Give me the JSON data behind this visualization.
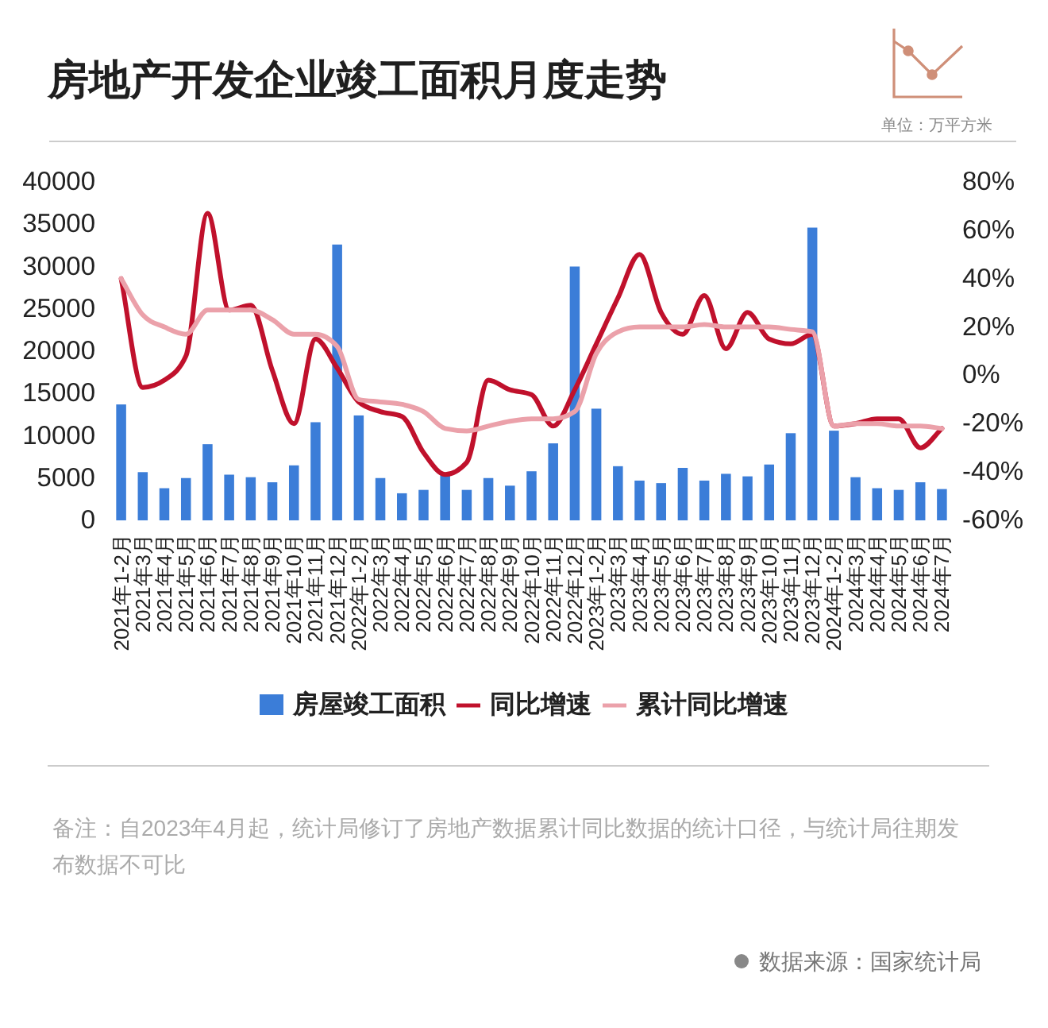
{
  "chart_data": {
    "type": "bar",
    "title": "房地产开发企业竣工面积月度走势",
    "subtitle": "单位：万平方米",
    "categories": [
      "2021年1-2月",
      "2021年3月",
      "2021年4月",
      "2021年5月",
      "2021年6月",
      "2021年7月",
      "2021年8月",
      "2021年9月",
      "2021年10月",
      "2021年11月",
      "2021年12月",
      "2022年1-2月",
      "2022年3月",
      "2022年4月",
      "2022年5月",
      "2022年6月",
      "2022年7月",
      "2022年8月",
      "2022年9月",
      "2022年10月",
      "2022年11月",
      "2022年12月",
      "2023年1-2月",
      "2023年3月",
      "2023年4月",
      "2023年5月",
      "2023年6月",
      "2023年7月",
      "2023年8月",
      "2023年9月",
      "2023年10月",
      "2023年11月",
      "2023年12月",
      "2024年1-2月",
      "2024年3月",
      "2024年4月",
      "2024年5月",
      "2024年6月",
      "2024年7月"
    ],
    "series": [
      {
        "name": "房屋竣工面积",
        "color": "#3b7dd8",
        "values": [
          13700,
          5700,
          3800,
          5000,
          9000,
          5400,
          5100,
          4500,
          6500,
          11600,
          32600,
          12400,
          5000,
          3200,
          3600,
          5400,
          3600,
          5000,
          4100,
          5800,
          9100,
          30000,
          13200,
          6400,
          4700,
          4400,
          6200,
          4700,
          5500,
          5200,
          6600,
          10300,
          34600,
          10600,
          5100,
          3800,
          3600,
          4500,
          3700
        ]
      },
      {
        "name": "同比增速",
        "type": "line",
        "axis": "y2",
        "color": "#c0112c",
        "values": [
          40,
          -5,
          -2,
          8,
          67,
          27,
          29,
          2,
          -20,
          15,
          3,
          -11,
          -15,
          -17,
          -32,
          -41,
          -36,
          -2,
          -6,
          -8,
          -21,
          -6,
          13,
          32,
          50,
          26,
          17,
          33,
          11,
          26,
          15,
          13,
          17,
          -21,
          -20,
          -18,
          -18,
          -30,
          -22
        ]
      },
      {
        "name": "累计同比增速",
        "type": "line",
        "axis": "y2",
        "color": "#eba1aa",
        "values": [
          40,
          25,
          20,
          17,
          27,
          27,
          27,
          23,
          17,
          17,
          12,
          -10,
          -11,
          -12,
          -15,
          -22,
          -23,
          -21,
          -19,
          -18,
          -18,
          -15,
          9,
          18,
          20,
          20,
          20,
          21,
          20,
          20,
          20,
          19,
          18,
          -21,
          -20,
          -20,
          -21,
          -21,
          -22
        ]
      }
    ],
    "ylim": [
      0,
      40000
    ],
    "yticks": [
      0,
      5000,
      10000,
      15000,
      20000,
      25000,
      30000,
      35000,
      40000
    ],
    "y2lim": [
      -60,
      80
    ],
    "y2ticks": [
      {
        "value": -60,
        "label": "-60%"
      },
      {
        "value": -40,
        "label": "-40%"
      },
      {
        "value": -20,
        "label": "-20%"
      },
      {
        "value": 0,
        "label": "0%"
      },
      {
        "value": 20,
        "label": "20%"
      },
      {
        "value": 40,
        "label": "40%"
      },
      {
        "value": 60,
        "label": "60%"
      },
      {
        "value": 80,
        "label": "80%"
      }
    ],
    "legend": "bottom",
    "annotations": [
      "备注：自2023年4月起，统计局修订了房地产数据累计同比数据的统计口径，与统计局往期发布数据不可比",
      "数据来源：国家统计局"
    ]
  }
}
